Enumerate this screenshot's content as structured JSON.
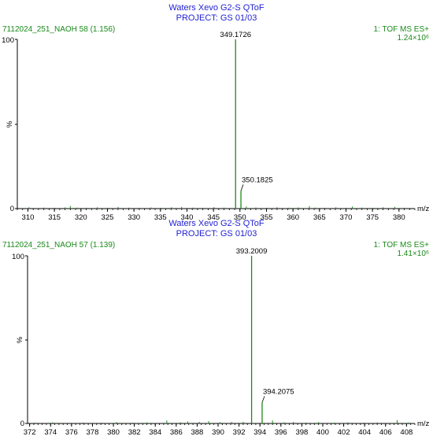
{
  "chart_data": [
    {
      "type": "bar",
      "title": "Waters Xevo G2-S QToF",
      "subtitle": "PROJECT: GS 01/03",
      "sample_label": "7112024_251_NAOH 58 (1.156)",
      "scan_label": "1: TOF MS ES+",
      "intensity_label": "1.24×10⁶",
      "xlabel": "m/z",
      "ylabel": "%",
      "y_ticks": [
        "0",
        "100"
      ],
      "xlim": [
        308,
        383
      ],
      "ylim": [
        0,
        100
      ],
      "x_ticks": [
        "310",
        "315",
        "320",
        "325",
        "330",
        "335",
        "340",
        "345",
        "350",
        "355",
        "360",
        "365",
        "370",
        "375",
        "380"
      ],
      "peaks": [
        {
          "x": 310.2,
          "y": 0.8
        },
        {
          "x": 311.4,
          "y": 0.4
        },
        {
          "x": 313.0,
          "y": 0.6
        },
        {
          "x": 315.1,
          "y": 0.5
        },
        {
          "x": 317.0,
          "y": 0.7
        },
        {
          "x": 318.0,
          "y": 1.5
        },
        {
          "x": 319.3,
          "y": 0.6
        },
        {
          "x": 321.0,
          "y": 0.5
        },
        {
          "x": 323.1,
          "y": 0.8
        },
        {
          "x": 325.2,
          "y": 0.5
        },
        {
          "x": 327.0,
          "y": 1.0
        },
        {
          "x": 329.1,
          "y": 0.6
        },
        {
          "x": 331.0,
          "y": 0.5
        },
        {
          "x": 333.2,
          "y": 0.7
        },
        {
          "x": 335.0,
          "y": 0.5
        },
        {
          "x": 337.1,
          "y": 0.8
        },
        {
          "x": 339.0,
          "y": 1.0
        },
        {
          "x": 341.2,
          "y": 0.6
        },
        {
          "x": 343.0,
          "y": 0.5
        },
        {
          "x": 345.1,
          "y": 0.9
        },
        {
          "x": 347.0,
          "y": 0.6
        },
        {
          "x": 349.1726,
          "y": 100,
          "label": "349.1726"
        },
        {
          "x": 350.1825,
          "y": 10.5,
          "label": "350.1825"
        },
        {
          "x": 351.2,
          "y": 1.2
        },
        {
          "x": 353.0,
          "y": 0.7
        },
        {
          "x": 355.1,
          "y": 0.5
        },
        {
          "x": 357.0,
          "y": 0.8
        },
        {
          "x": 359.2,
          "y": 0.5
        },
        {
          "x": 361.0,
          "y": 0.7
        },
        {
          "x": 363.1,
          "y": 1.5
        },
        {
          "x": 364.2,
          "y": 0.6
        },
        {
          "x": 366.0,
          "y": 0.5
        },
        {
          "x": 368.1,
          "y": 0.8
        },
        {
          "x": 370.0,
          "y": 0.5
        },
        {
          "x": 371.2,
          "y": 1.2
        },
        {
          "x": 373.0,
          "y": 0.6
        },
        {
          "x": 375.1,
          "y": 0.5
        },
        {
          "x": 377.0,
          "y": 0.8
        },
        {
          "x": 379.2,
          "y": 1.0
        },
        {
          "x": 381.0,
          "y": 0.5
        }
      ]
    },
    {
      "type": "bar",
      "title": "Waters Xevo G2-S QToF",
      "subtitle": "PROJECT: GS 01/03",
      "sample_label": "7112024_251_NAOH 57 (1.139)",
      "scan_label": "1: TOF MS ES+",
      "intensity_label": "1.41×10⁶",
      "xlabel": "m/z",
      "ylabel": "%",
      "y_ticks": [
        "0",
        "100"
      ],
      "xlim": [
        371.8,
        408.8
      ],
      "ylim": [
        0,
        100
      ],
      "x_ticks": [
        "372",
        "374",
        "376",
        "378",
        "380",
        "382",
        "384",
        "386",
        "388",
        "390",
        "392",
        "394",
        "396",
        "398",
        "400",
        "402",
        "404",
        "406",
        "408"
      ],
      "peaks": [
        {
          "x": 372.5,
          "y": 0.5
        },
        {
          "x": 374.2,
          "y": 0.7
        },
        {
          "x": 375.6,
          "y": 0.4
        },
        {
          "x": 377.1,
          "y": 0.6
        },
        {
          "x": 378.9,
          "y": 0.5
        },
        {
          "x": 380.3,
          "y": 0.8
        },
        {
          "x": 381.8,
          "y": 0.5
        },
        {
          "x": 383.2,
          "y": 0.6
        },
        {
          "x": 385.1,
          "y": 1.8
        },
        {
          "x": 386.4,
          "y": 0.7
        },
        {
          "x": 387.1,
          "y": 1.2
        },
        {
          "x": 388.2,
          "y": 1.0
        },
        {
          "x": 389.1,
          "y": 1.4
        },
        {
          "x": 390.2,
          "y": 0.8
        },
        {
          "x": 391.3,
          "y": 0.9
        },
        {
          "x": 392.4,
          "y": 1.0
        },
        {
          "x": 393.2009,
          "y": 100,
          "label": "393.2009"
        },
        {
          "x": 394.2075,
          "y": 12.5,
          "label": "394.2075"
        },
        {
          "x": 395.2,
          "y": 1.8
        },
        {
          "x": 396.3,
          "y": 0.7
        },
        {
          "x": 397.2,
          "y": 0.9
        },
        {
          "x": 398.4,
          "y": 0.6
        },
        {
          "x": 399.6,
          "y": 0.8
        },
        {
          "x": 401.1,
          "y": 0.5
        },
        {
          "x": 402.4,
          "y": 0.7
        },
        {
          "x": 403.9,
          "y": 0.5
        },
        {
          "x": 405.2,
          "y": 0.6
        },
        {
          "x": 407.1,
          "y": 2.0
        },
        {
          "x": 408.2,
          "y": 0.6
        }
      ]
    }
  ]
}
